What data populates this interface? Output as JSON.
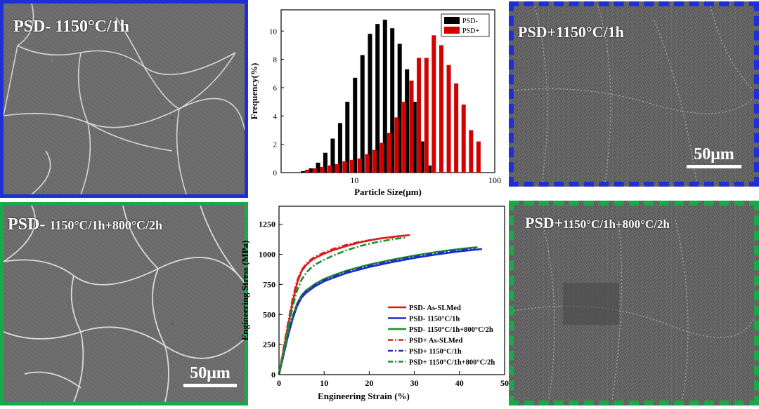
{
  "panels": {
    "top_left": {
      "label": "PSD- 1150°C/1h",
      "border_color": "#1e2fd6"
    },
    "top_right": {
      "label": "PSD+1150°C/1h",
      "border_color": "#1e2fd6",
      "scale_bar": "50μm"
    },
    "bottom_left": {
      "label_prefix": "PSD- ",
      "label_suffix": "1150°C/1h+800°C/2h",
      "border_color": "#19a84a",
      "scale_bar": "50μm"
    },
    "bottom_right": {
      "label_prefix": "PSD+",
      "label_suffix": "1150°C/1h+800°C/2h",
      "border_color": "#19a84a"
    }
  },
  "chart_data": [
    {
      "type": "bar",
      "xlabel": "Particle Size(μm)",
      "ylabel": "Frequency(%)",
      "xscale": "log",
      "xlim": [
        3,
        100
      ],
      "ylim": [
        0,
        11.5
      ],
      "xticks": [
        "10",
        "100"
      ],
      "yticks": [
        "0",
        "2",
        "4",
        "6",
        "8",
        "10"
      ],
      "legend_position": "top-right",
      "series": [
        {
          "name": "PSD-",
          "color": "#000000",
          "x": [
            4.3,
            4.9,
            5.5,
            6.2,
            7.0,
            7.9,
            8.9,
            10.1,
            11.4,
            12.9,
            14.6,
            16.5,
            18.6,
            21.0,
            23.7,
            26.8,
            30.3,
            34.2
          ],
          "values": [
            0.1,
            0.3,
            0.7,
            1.4,
            2.4,
            3.5,
            5.0,
            6.7,
            8.3,
            9.8,
            10.5,
            10.8,
            10.2,
            9.1,
            7.3,
            5.0,
            2.2,
            0.5
          ]
        },
        {
          "name": "PSD+",
          "color": "#d40000",
          "x": [
            4.6,
            5.2,
            5.9,
            6.7,
            7.5,
            8.5,
            9.6,
            10.9,
            12.3,
            13.9,
            15.7,
            17.7,
            20.0,
            22.6,
            25.5,
            28.8,
            32.6,
            36.8,
            41.6,
            47.0,
            53.1,
            60.0,
            67.8,
            76.6
          ],
          "values": [
            0.2,
            0.3,
            0.4,
            0.5,
            0.6,
            0.8,
            0.9,
            1.0,
            1.3,
            1.6,
            2.1,
            2.8,
            3.9,
            5.0,
            6.5,
            8.1,
            8.1,
            9.7,
            9.0,
            7.6,
            6.3,
            4.8,
            3.0,
            2.2
          ]
        }
      ]
    },
    {
      "type": "line",
      "xlabel": "Engineering Strain (%)",
      "ylabel": "Engineering Stress (MPa)",
      "xlim": [
        0,
        50
      ],
      "ylim": [
        0,
        1400
      ],
      "xticks": [
        "0",
        "10",
        "20",
        "30",
        "40",
        "50"
      ],
      "yticks": [
        "0",
        "250",
        "500",
        "750",
        "1000",
        "1250"
      ],
      "legend_position": "bottom-right",
      "series": [
        {
          "name": "PSD- As-SLMed",
          "color": "#d81e1e",
          "style": "solid",
          "x": [
            0,
            1,
            2,
            3,
            4,
            5,
            6,
            7,
            8,
            10,
            12,
            15,
            18,
            22,
            26,
            29
          ],
          "y": [
            0,
            200,
            400,
            600,
            760,
            860,
            910,
            945,
            970,
            1005,
            1035,
            1070,
            1100,
            1130,
            1150,
            1160
          ]
        },
        {
          "name": "PSD- 1150°C/1h",
          "color": "#1e2bc8",
          "style": "solid",
          "x": [
            0,
            1,
            2,
            3,
            4,
            5,
            6,
            8,
            10,
            12,
            15,
            20,
            25,
            30,
            35,
            40,
            45
          ],
          "y": [
            0,
            160,
            320,
            460,
            570,
            640,
            680,
            735,
            775,
            805,
            845,
            895,
            935,
            970,
            1000,
            1025,
            1045
          ]
        },
        {
          "name": "PSD- 1150°C/1h+800°C/2h",
          "color": "#1a8f2a",
          "style": "solid",
          "x": [
            0,
            1,
            2,
            3,
            4,
            5,
            6,
            8,
            10,
            12,
            15,
            20,
            25,
            30,
            35,
            40,
            44
          ],
          "y": [
            0,
            170,
            340,
            480,
            590,
            660,
            700,
            755,
            795,
            825,
            865,
            915,
            955,
            990,
            1020,
            1045,
            1060
          ]
        },
        {
          "name": "PSD+ As-SLMed",
          "color": "#d81e1e",
          "style": "dashdot",
          "x": [
            0,
            1,
            2,
            3,
            4,
            5,
            6,
            7,
            8,
            10,
            12,
            15,
            18,
            22,
            27
          ],
          "y": [
            0,
            220,
            430,
            630,
            780,
            870,
            920,
            955,
            980,
            1015,
            1045,
            1080,
            1105,
            1130,
            1150
          ]
        },
        {
          "name": "PSD+ 1150°C/1h",
          "color": "#1e2bc8",
          "style": "dashdot",
          "x": [
            0,
            1,
            2,
            3,
            4,
            5,
            6,
            8,
            10,
            12,
            15,
            20,
            25,
            30,
            35,
            40,
            43.5
          ],
          "y": [
            0,
            165,
            330,
            470,
            580,
            650,
            690,
            745,
            785,
            815,
            855,
            905,
            945,
            980,
            1010,
            1035,
            1050
          ]
        },
        {
          "name": "PSD+ 1150°C/1h+800°C/2h",
          "color": "#1a8f2a",
          "style": "dashdot",
          "x": [
            0,
            1,
            2,
            3,
            4,
            5,
            6,
            7,
            8,
            10,
            12,
            15,
            18,
            22,
            26,
            28
          ],
          "y": [
            0,
            190,
            380,
            560,
            700,
            790,
            845,
            885,
            915,
            955,
            990,
            1035,
            1070,
            1105,
            1130,
            1140
          ]
        }
      ]
    }
  ]
}
